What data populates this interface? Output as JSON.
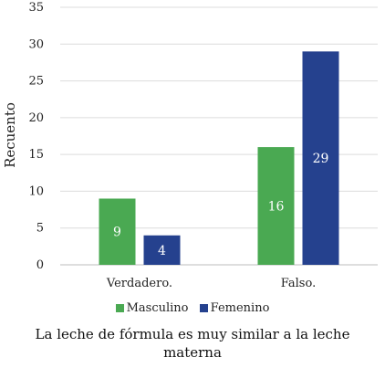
{
  "chart_data": {
    "type": "bar",
    "categories": [
      "Verdadero.",
      "Falso."
    ],
    "series": [
      {
        "name": "Masculino",
        "values": [
          9,
          16
        ],
        "color": "#4aa952"
      },
      {
        "name": "Femenino",
        "values": [
          4,
          29
        ],
        "color": "#25418e"
      }
    ],
    "xlabel": "La leche de fórmula es muy similar a la leche materna",
    "ylabel": "Recuento",
    "ylim": [
      0,
      35
    ],
    "yticks": [
      0,
      5,
      10,
      15,
      20,
      25,
      30,
      35
    ],
    "grid": true,
    "legend_position": "bottom",
    "data_labels": true
  }
}
